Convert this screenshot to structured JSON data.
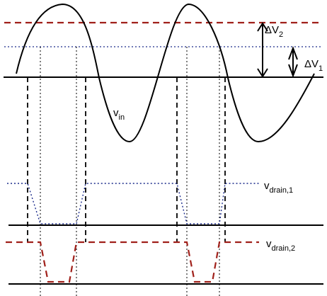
{
  "labels": {
    "vin": {
      "main": "v",
      "sub": "in"
    },
    "vdrain1": {
      "main": "v",
      "sub": "drain,1"
    },
    "vdrain2": {
      "main": "v",
      "sub": "drain,2"
    },
    "dv2": {
      "main": "ΔV",
      "sub": "2"
    },
    "dv1": {
      "main": "ΔV",
      "sub": "1"
    }
  },
  "colors": {
    "line": "#000000",
    "threshold_2": "#a0201a",
    "threshold_1": "#1c2c8c"
  }
}
